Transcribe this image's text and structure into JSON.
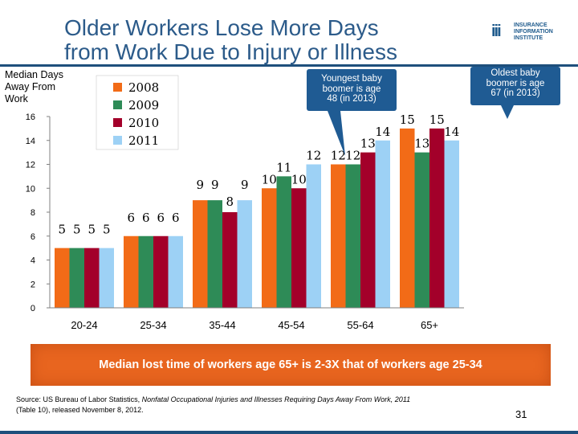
{
  "slide": {
    "title_line1": "Older Workers Lose More Days",
    "title_line2": "from Work Due to Injury or Illness",
    "logo_mark": "iii",
    "logo_line1": "INSURANCE",
    "logo_line2": "INFORMATION",
    "logo_line3": "INSTITUTE",
    "ylabel_line1": "Median Days",
    "ylabel_line2": "Away From",
    "ylabel_line3": "Work",
    "callout_young": [
      "Youngest baby",
      "boomer is age",
      "48 (in 2013)"
    ],
    "callout_old": [
      "Oldest baby",
      "boomer is age",
      "67 (in 2013)"
    ],
    "banner": "Median lost time of workers age 65+ is 2-3X that of workers age 25-34",
    "source_prefix": "Source: US Bureau of Labor Statistics, ",
    "source_title": "Nonfatal Occupational Injuries and Illnesses Requiring Days Away From Work, 2011",
    "source_suffix": "(Table 10), released November 8, 2012.",
    "page_number": "31"
  },
  "colors": {
    "s2008": "#f26b17",
    "s2009": "#2e8b57",
    "s2010": "#a3002a",
    "s2011": "#9dd1f5",
    "title": "#2c5b8a",
    "banner": "#e8651f",
    "callout": "#1f5b93"
  },
  "chart_data": {
    "type": "bar",
    "title": "Older Workers Lose More Days from Work Due to Injury or Illness",
    "xlabel": "",
    "ylabel": "Median Days Away From Work",
    "ylim": [
      0,
      16
    ],
    "yticks": [
      0,
      2,
      4,
      6,
      8,
      10,
      12,
      14,
      16
    ],
    "categories": [
      "20-24",
      "25-34",
      "35-44",
      "45-54",
      "55-64",
      "65+"
    ],
    "legend_position": "top-left",
    "series": [
      {
        "name": "2008",
        "values": [
          5,
          6,
          9,
          10,
          12,
          15
        ]
      },
      {
        "name": "2009",
        "values": [
          5,
          6,
          9,
          11,
          12,
          13
        ]
      },
      {
        "name": "2010",
        "values": [
          5,
          6,
          8,
          10,
          13,
          15
        ]
      },
      {
        "name": "2011",
        "values": [
          5,
          6,
          9,
          12,
          14,
          14
        ]
      }
    ]
  }
}
